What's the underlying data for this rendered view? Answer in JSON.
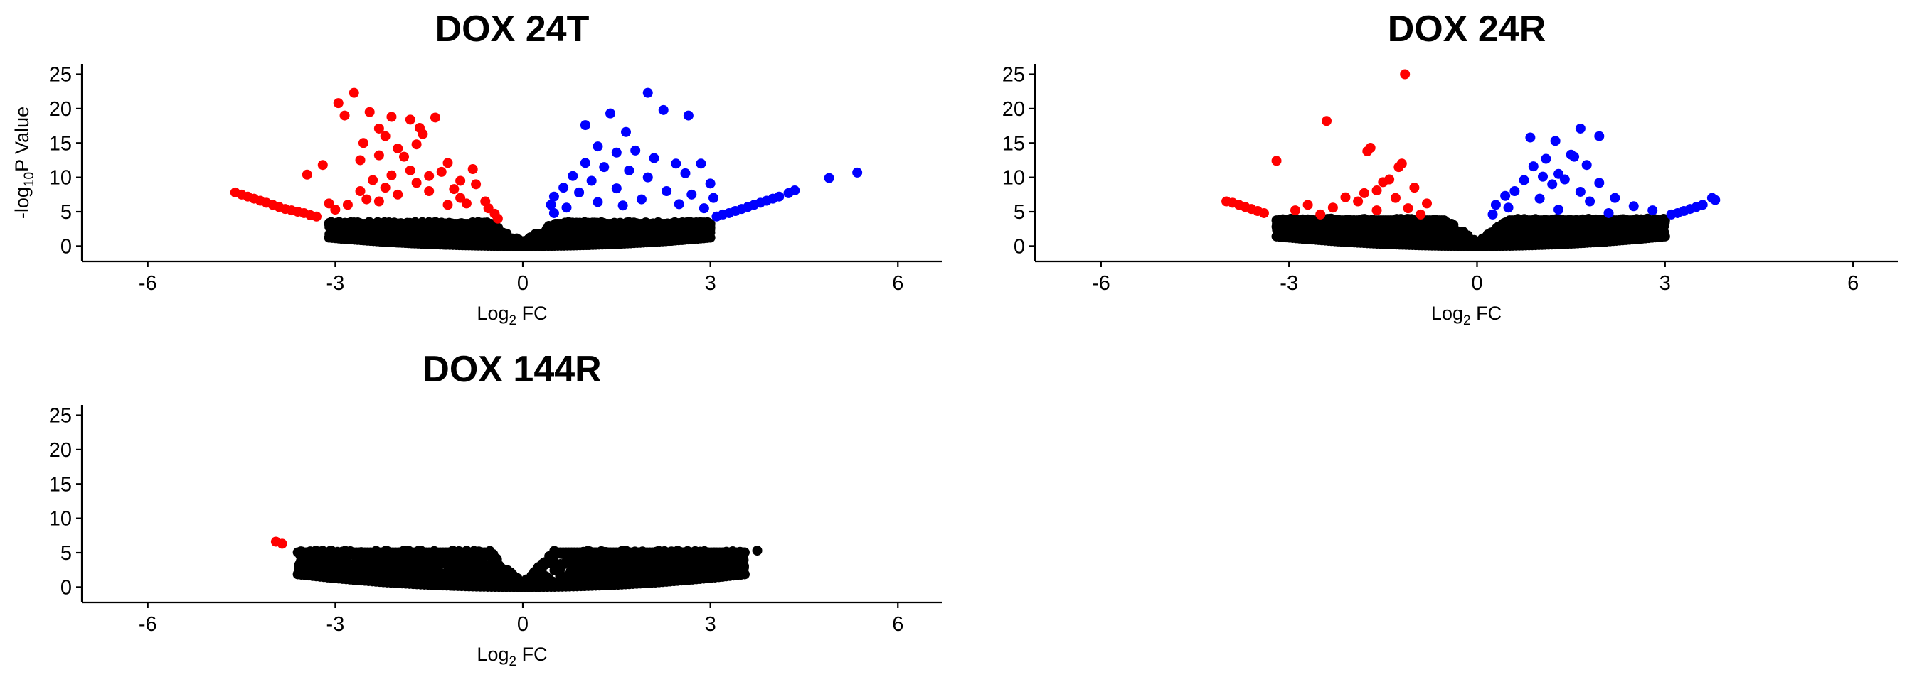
{
  "colors": {
    "down": "#ff0000",
    "up": "#0000ff",
    "ns": "#000000"
  },
  "chart_data": [
    {
      "type": "scatter",
      "title": "DOX 24T",
      "xlabel": {
        "main": "Log",
        "sub": "2",
        "tail": " FC"
      },
      "ylabel": {
        "main": "-log",
        "sub": "10",
        "tail": "P Value"
      },
      "xlim": [
        -6.6,
        6.6
      ],
      "ylim": [
        -1.2,
        26.5
      ],
      "xticks": [
        "-6",
        "-3",
        "0",
        "3",
        "6"
      ],
      "yticks": [
        "0",
        "5",
        "10",
        "15",
        "20",
        "25"
      ],
      "envelope": {
        "min_x": -3.1,
        "max_x": 3.0,
        "min_y": 3.5
      },
      "down": [
        [
          -4.6,
          7.8
        ],
        [
          -4.5,
          7.5
        ],
        [
          -4.4,
          7.2
        ],
        [
          -4.3,
          6.9
        ],
        [
          -4.2,
          6.6
        ],
        [
          -4.1,
          6.3
        ],
        [
          -4.0,
          6.0
        ],
        [
          -3.9,
          5.7
        ],
        [
          -3.8,
          5.4
        ],
        [
          -3.7,
          5.2
        ],
        [
          -3.6,
          5.0
        ],
        [
          -3.5,
          4.8
        ],
        [
          -3.4,
          4.5
        ],
        [
          -3.3,
          4.3
        ],
        [
          -3.45,
          10.4
        ],
        [
          -3.2,
          11.8
        ],
        [
          -2.95,
          20.8
        ],
        [
          -2.7,
          22.3
        ],
        [
          -2.85,
          19.0
        ],
        [
          -2.45,
          19.5
        ],
        [
          -2.3,
          17.1
        ],
        [
          -2.1,
          18.8
        ],
        [
          -2.2,
          16.0
        ],
        [
          -2.0,
          14.2
        ],
        [
          -1.9,
          13.0
        ],
        [
          -1.8,
          18.4
        ],
        [
          -1.65,
          17.2
        ],
        [
          -1.6,
          16.3
        ],
        [
          -1.4,
          18.7
        ],
        [
          -2.55,
          15.0
        ],
        [
          -2.6,
          12.5
        ],
        [
          -2.3,
          13.2
        ],
        [
          -1.7,
          14.8
        ],
        [
          -1.2,
          12.1
        ],
        [
          -1.3,
          10.8
        ],
        [
          -1.5,
          10.2
        ],
        [
          -1.8,
          11.0
        ],
        [
          -2.1,
          10.3
        ],
        [
          -2.4,
          9.6
        ],
        [
          -1.0,
          9.5
        ],
        [
          -0.8,
          11.2
        ],
        [
          -0.75,
          9.0
        ],
        [
          -1.1,
          8.3
        ],
        [
          -1.7,
          9.2
        ],
        [
          -2.2,
          8.5
        ],
        [
          -2.6,
          8.0
        ],
        [
          -0.6,
          6.5
        ],
        [
          -0.55,
          5.5
        ],
        [
          -0.45,
          4.7
        ],
        [
          -0.4,
          4.0
        ],
        [
          -3.0,
          5.3
        ],
        [
          -2.8,
          6.0
        ],
        [
          -2.5,
          6.8
        ],
        [
          -2.0,
          7.5
        ],
        [
          -1.5,
          8.0
        ],
        [
          -1.0,
          7.0
        ],
        [
          -0.9,
          6.2
        ],
        [
          -3.1,
          6.2
        ],
        [
          -2.3,
          6.5
        ],
        [
          -1.2,
          6.0
        ]
      ],
      "up": [
        [
          4.9,
          9.9
        ],
        [
          5.35,
          10.7
        ],
        [
          4.35,
          8.1
        ],
        [
          4.25,
          7.7
        ],
        [
          4.1,
          7.2
        ],
        [
          4.0,
          6.9
        ],
        [
          3.9,
          6.6
        ],
        [
          3.8,
          6.3
        ],
        [
          3.7,
          6.0
        ],
        [
          3.6,
          5.7
        ],
        [
          3.5,
          5.4
        ],
        [
          3.4,
          5.1
        ],
        [
          3.3,
          4.8
        ],
        [
          3.2,
          4.6
        ],
        [
          3.1,
          4.3
        ],
        [
          2.0,
          22.3
        ],
        [
          2.25,
          19.8
        ],
        [
          2.65,
          19.0
        ],
        [
          1.4,
          19.3
        ],
        [
          1.0,
          17.6
        ],
        [
          1.65,
          16.6
        ],
        [
          1.2,
          14.5
        ],
        [
          1.5,
          13.6
        ],
        [
          1.8,
          13.9
        ],
        [
          2.1,
          12.8
        ],
        [
          1.0,
          12.1
        ],
        [
          2.45,
          12.0
        ],
        [
          2.85,
          12.0
        ],
        [
          1.3,
          11.5
        ],
        [
          1.7,
          11.0
        ],
        [
          0.8,
          10.2
        ],
        [
          2.6,
          10.6
        ],
        [
          2.0,
          10.0
        ],
        [
          3.0,
          9.1
        ],
        [
          1.1,
          9.5
        ],
        [
          0.65,
          8.5
        ],
        [
          0.5,
          7.2
        ],
        [
          0.45,
          6.0
        ],
        [
          0.5,
          4.8
        ],
        [
          0.9,
          7.8
        ],
        [
          1.5,
          8.4
        ],
        [
          2.3,
          8.0
        ],
        [
          2.7,
          7.5
        ],
        [
          3.05,
          7.0
        ],
        [
          1.9,
          6.8
        ],
        [
          1.2,
          6.4
        ],
        [
          2.5,
          6.1
        ],
        [
          0.7,
          5.6
        ],
        [
          2.9,
          5.5
        ],
        [
          1.6,
          5.9
        ]
      ],
      "ns_extra": []
    },
    {
      "type": "scatter",
      "title": "DOX 24R",
      "xlabel": {
        "main": "Log",
        "sub": "2",
        "tail": " FC"
      },
      "ylabel": {
        "main": "",
        "sub": "",
        "tail": ""
      },
      "xlim": [
        -6.6,
        6.6
      ],
      "ylim": [
        -1.2,
        26.5
      ],
      "xticks": [
        "-6",
        "-3",
        "0",
        "3",
        "6"
      ],
      "yticks": [
        "0",
        "5",
        "10",
        "15",
        "20",
        "25"
      ],
      "envelope": {
        "min_x": -3.2,
        "max_x": 3.0,
        "min_y": 4.0
      },
      "down": [
        [
          -4.0,
          6.5
        ],
        [
          -3.9,
          6.3
        ],
        [
          -3.8,
          6.0
        ],
        [
          -3.7,
          5.7
        ],
        [
          -3.6,
          5.4
        ],
        [
          -3.5,
          5.1
        ],
        [
          -3.4,
          4.8
        ],
        [
          -1.15,
          25.0
        ],
        [
          -2.4,
          18.2
        ],
        [
          -1.7,
          14.3
        ],
        [
          -1.75,
          13.8
        ],
        [
          -3.2,
          12.4
        ],
        [
          -1.2,
          12.0
        ],
        [
          -1.25,
          11.5
        ],
        [
          -1.4,
          9.7
        ],
        [
          -1.5,
          9.3
        ],
        [
          -1.6,
          8.1
        ],
        [
          -1.0,
          8.5
        ],
        [
          -1.8,
          7.7
        ],
        [
          -2.1,
          7.1
        ],
        [
          -1.3,
          7.0
        ],
        [
          -1.9,
          6.5
        ],
        [
          -2.7,
          6.0
        ],
        [
          -0.8,
          6.2
        ],
        [
          -2.3,
          5.6
        ],
        [
          -1.1,
          5.5
        ],
        [
          -2.9,
          5.2
        ],
        [
          -1.6,
          5.2
        ],
        [
          -0.9,
          4.6
        ],
        [
          -2.5,
          4.6
        ]
      ],
      "up": [
        [
          3.75,
          7.0
        ],
        [
          3.8,
          6.7
        ],
        [
          3.6,
          6.0
        ],
        [
          3.5,
          5.7
        ],
        [
          3.4,
          5.4
        ],
        [
          3.3,
          5.1
        ],
        [
          3.2,
          4.8
        ],
        [
          3.1,
          4.6
        ],
        [
          1.65,
          17.1
        ],
        [
          1.95,
          16.0
        ],
        [
          0.85,
          15.8
        ],
        [
          1.25,
          15.3
        ],
        [
          1.5,
          13.3
        ],
        [
          1.55,
          13.0
        ],
        [
          1.1,
          12.7
        ],
        [
          1.75,
          11.8
        ],
        [
          0.9,
          11.6
        ],
        [
          1.3,
          10.5
        ],
        [
          1.05,
          10.1
        ],
        [
          1.4,
          9.7
        ],
        [
          0.75,
          9.6
        ],
        [
          1.95,
          9.2
        ],
        [
          1.2,
          9.0
        ],
        [
          0.6,
          8.0
        ],
        [
          1.65,
          7.9
        ],
        [
          0.45,
          7.3
        ],
        [
          2.2,
          7.0
        ],
        [
          1.0,
          6.9
        ],
        [
          0.3,
          6.0
        ],
        [
          1.8,
          6.5
        ],
        [
          2.5,
          5.8
        ],
        [
          0.5,
          5.6
        ],
        [
          2.8,
          5.2
        ],
        [
          1.3,
          5.3
        ],
        [
          0.25,
          4.6
        ],
        [
          2.1,
          4.8
        ]
      ],
      "ns_extra": []
    },
    {
      "type": "scatter",
      "title": "DOX 144R",
      "xlabel": {
        "main": "Log",
        "sub": "2",
        "tail": " FC"
      },
      "ylabel": {
        "main": "",
        "sub": "",
        "tail": ""
      },
      "xlim": [
        -6.6,
        6.6
      ],
      "ylim": [
        -1.2,
        26.5
      ],
      "xticks": [
        "-6",
        "-3",
        "0",
        "3",
        "6"
      ],
      "yticks": [
        "0",
        "5",
        "10",
        "15",
        "20",
        "25"
      ],
      "envelope": {
        "min_x": -3.6,
        "max_x": 3.55,
        "min_y": 5.3
      },
      "down": [
        [
          -3.95,
          6.6
        ],
        [
          -3.85,
          6.3
        ]
      ],
      "up": [],
      "ns_extra": [
        [
          3.75,
          5.3
        ],
        [
          -3.55,
          5.2
        ],
        [
          -3.45,
          4.9
        ],
        [
          0.75,
          3.9
        ],
        [
          0.95,
          3.2
        ],
        [
          -1.95,
          4.0
        ],
        [
          -0.9,
          3.6
        ],
        [
          2.3,
          3.1
        ]
      ]
    }
  ]
}
